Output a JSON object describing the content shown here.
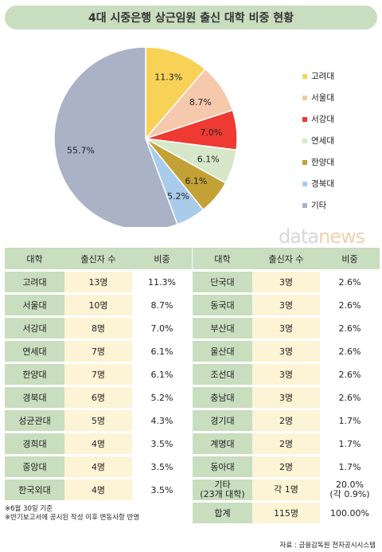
{
  "title": "4대 시중은행 상근임원 출신 대학 비중 현황",
  "watermark": {
    "part1": "data",
    "part2": "news"
  },
  "colors": {
    "header": "#c9ddbf",
    "row_highlight": "#fdf3d5"
  },
  "chart_data": {
    "type": "pie",
    "start_angle_deg": 0,
    "direction": "clockwise",
    "slices": [
      {
        "label": "고려대",
        "value": 11.3,
        "display": "11.3%",
        "color": "#f8d257"
      },
      {
        "label": "서울대",
        "value": 8.7,
        "display": "8.7%",
        "color": "#f6c8ac"
      },
      {
        "label": "서강대",
        "value": 7.0,
        "display": "7.0%",
        "color": "#ee3a32"
      },
      {
        "label": "연세대",
        "value": 6.1,
        "display": "6.1%",
        "color": "#d6e8c9"
      },
      {
        "label": "한양대",
        "value": 6.1,
        "display": "6.1%",
        "color": "#c3a135"
      },
      {
        "label": "경북대",
        "value": 5.2,
        "display": "5.2%",
        "color": "#a9cbec"
      },
      {
        "label": "기타",
        "value": 55.7,
        "display": "55.7%",
        "color": "#aab2c6"
      }
    ],
    "legend_position": "right"
  },
  "table_headers": [
    "대학",
    "출신자 수",
    "비중"
  ],
  "left_rows": [
    [
      "고려대",
      "13명",
      "11.3%"
    ],
    [
      "서울대",
      "10명",
      "8.7%"
    ],
    [
      "서강대",
      "8명",
      "7.0%"
    ],
    [
      "연세대",
      "7명",
      "6.1%"
    ],
    [
      "한양대",
      "7명",
      "6.1%"
    ],
    [
      "경북대",
      "6명",
      "5.2%"
    ],
    [
      "성균관대",
      "5명",
      "4.3%"
    ],
    [
      "경희대",
      "4명",
      "3.5%"
    ],
    [
      "중앙대",
      "4명",
      "3.5%"
    ],
    [
      "한국외대",
      "4명",
      "3.5%"
    ]
  ],
  "right_rows": [
    [
      "단국대",
      "3명",
      "2.6%"
    ],
    [
      "동국대",
      "3명",
      "2.6%"
    ],
    [
      "부산대",
      "3명",
      "2.6%"
    ],
    [
      "울산대",
      "3명",
      "2.6%"
    ],
    [
      "조선대",
      "3명",
      "2.6%"
    ],
    [
      "충남대",
      "3명",
      "2.6%"
    ],
    [
      "경기대",
      "2명",
      "1.7%"
    ],
    [
      "계명대",
      "2명",
      "1.7%"
    ],
    [
      "동아대",
      "2명",
      "1.7%"
    ]
  ],
  "other_row": {
    "name_line1": "기타",
    "name_line2": "(23개 대학)",
    "count": "각 1명",
    "share_line1": "20.0%",
    "share_line2": "(각 0.9%)"
  },
  "total_row": {
    "name": "합계",
    "count": "115명",
    "share": "100.00%"
  },
  "notes": [
    "※6월 30일 기준",
    "※반기보고서에 공시된 작성 이후 변동사항 반영"
  ],
  "source": "자료 : 금융감독원 전자공시시스템"
}
